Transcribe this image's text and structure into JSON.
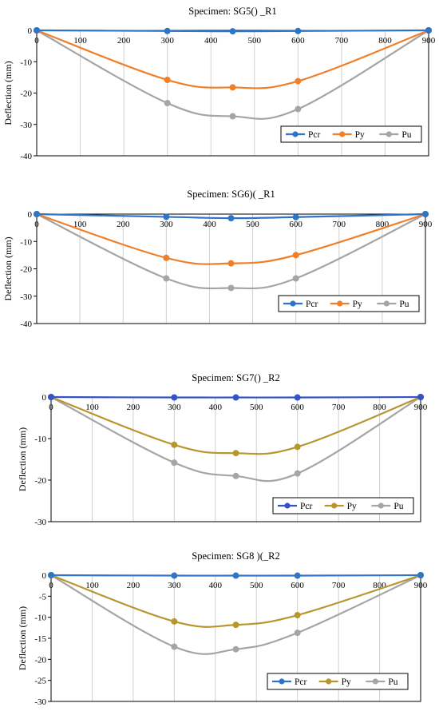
{
  "chart_data": [
    {
      "type": "line",
      "title": "Specimen:  SG5() _R1",
      "ylabel": "Deflection (mm)",
      "xlabel": "",
      "x": [
        0,
        300,
        450,
        600,
        900
      ],
      "xlim": [
        0,
        900
      ],
      "xticks": [
        0,
        100,
        200,
        300,
        400,
        500,
        600,
        700,
        800,
        900
      ],
      "ylim": [
        -40,
        0
      ],
      "yticks": [
        0,
        -10,
        -20,
        -30,
        -40
      ],
      "grid": true,
      "legend_position": "bottom-right",
      "series": [
        {
          "name": "Pcr",
          "color": "#2e75c8",
          "values": [
            0,
            -0.2,
            -0.3,
            -0.2,
            0
          ]
        },
        {
          "name": "Py",
          "color": "#f07f2a",
          "values": [
            0,
            -15.8,
            -18.2,
            -16.2,
            0
          ]
        },
        {
          "name": "Pu",
          "color": "#a5a5a5",
          "values": [
            0,
            -23.2,
            -27.4,
            -25.1,
            0
          ]
        }
      ]
    },
    {
      "type": "line",
      "title": "Specimen: SG6)( _R1",
      "ylabel": "Deflection (mm)",
      "xlabel": "",
      "x": [
        0,
        300,
        450,
        600,
        900
      ],
      "xlim": [
        0,
        900
      ],
      "xticks": [
        0,
        100,
        200,
        300,
        400,
        500,
        600,
        700,
        800,
        900
      ],
      "ylim": [
        -40,
        0
      ],
      "yticks": [
        0,
        -10,
        -20,
        -30,
        -40
      ],
      "grid": true,
      "legend_position": "bottom-right",
      "series": [
        {
          "name": "Pcr",
          "color": "#2e75c8",
          "values": [
            0,
            -1.0,
            -1.5,
            -1.1,
            0
          ]
        },
        {
          "name": "Py",
          "color": "#f07f2a",
          "values": [
            0,
            -16.0,
            -18.0,
            -15.0,
            0
          ]
        },
        {
          "name": "Pu",
          "color": "#a5a5a5",
          "values": [
            0,
            -23.5,
            -27.0,
            -23.5,
            0
          ]
        }
      ]
    },
    {
      "type": "line",
      "title": "Specimen: SG7() _R2",
      "ylabel": "Deflection (mm)",
      "xlabel": "",
      "x": [
        0,
        300,
        450,
        600,
        900
      ],
      "xlim": [
        0,
        900
      ],
      "xticks": [
        0,
        100,
        200,
        300,
        400,
        500,
        600,
        700,
        800,
        900
      ],
      "ylim": [
        -30,
        0
      ],
      "yticks": [
        0,
        -10,
        -20,
        -30
      ],
      "grid": true,
      "legend_position": "bottom-right",
      "series": [
        {
          "name": "Pcr",
          "color": "#3553c4",
          "values": [
            0,
            -0.1,
            -0.1,
            -0.1,
            0
          ]
        },
        {
          "name": "Py",
          "color": "#b8962e",
          "values": [
            0,
            -11.5,
            -13.5,
            -12.0,
            0
          ]
        },
        {
          "name": "Pu",
          "color": "#a5a5a5",
          "values": [
            0,
            -15.8,
            -19.0,
            -18.4,
            0
          ]
        }
      ]
    },
    {
      "type": "line",
      "title": "Specimen: SG8 )(_R2",
      "ylabel": "Deflection (mm)",
      "xlabel": "",
      "x": [
        0,
        300,
        450,
        600,
        900
      ],
      "xlim": [
        0,
        900
      ],
      "xticks": [
        0,
        100,
        200,
        300,
        400,
        500,
        600,
        700,
        800,
        900
      ],
      "ylim": [
        -30,
        0
      ],
      "yticks": [
        0,
        -5,
        -10,
        -15,
        -20,
        -25,
        -30
      ],
      "grid": true,
      "legend_position": "bottom-right",
      "series": [
        {
          "name": "Pcr",
          "color": "#2e75c8",
          "values": [
            0,
            -0.1,
            -0.1,
            -0.1,
            0
          ]
        },
        {
          "name": "Py",
          "color": "#b8962e",
          "values": [
            0,
            -11.0,
            -11.8,
            -9.5,
            0
          ]
        },
        {
          "name": "Pu",
          "color": "#a5a5a5",
          "values": [
            0,
            -17.0,
            -17.6,
            -13.7,
            0
          ]
        }
      ]
    }
  ]
}
